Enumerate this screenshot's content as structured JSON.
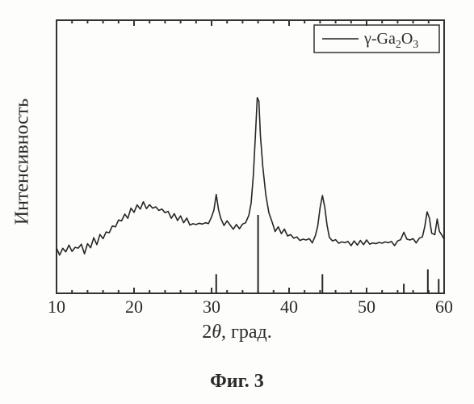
{
  "figure_caption": "Фиг. 3",
  "axes": {
    "xlabel_prefix": "2",
    "xlabel_theta": "θ",
    "xlabel_suffix": ", град.",
    "ylabel": "Интенсивность",
    "xlim": [
      10,
      60
    ],
    "ylim": [
      0,
      100
    ],
    "ymax_display": 100,
    "xticks": [
      10,
      20,
      30,
      40,
      50,
      60
    ],
    "xtick_labels": [
      "10",
      "20",
      "30",
      "40",
      "50",
      "60"
    ],
    "xtick_minor_step": 2,
    "y_axis_visible": false,
    "axis_color": "#333333",
    "tick_length_major": 7,
    "tick_length_minor": 4,
    "tick_fontsize": 22,
    "label_fontsize": 24,
    "background_color": "#ffffff",
    "line_color": "#262626",
    "line_width": 1.6
  },
  "legend": {
    "label_plain": "γ-Ga",
    "sub1": "2",
    "mid": "O",
    "sub2": "3",
    "line_color": "#222222",
    "box_color": "#333333"
  },
  "reference_bars": [
    {
      "x": 30.6,
      "h": 20
    },
    {
      "x": 36.0,
      "h": 82
    },
    {
      "x": 44.3,
      "h": 20
    },
    {
      "x": 54.8,
      "h": 10
    },
    {
      "x": 57.9,
      "h": 25
    },
    {
      "x": 59.3,
      "h": 15
    }
  ],
  "xrd_curve": [
    [
      10.0,
      16
    ],
    [
      10.4,
      14
    ],
    [
      10.8,
      17
    ],
    [
      11.2,
      15
    ],
    [
      11.6,
      18
    ],
    [
      12.0,
      15
    ],
    [
      12.4,
      17
    ],
    [
      12.8,
      16
    ],
    [
      13.2,
      18
    ],
    [
      13.6,
      15
    ],
    [
      14.0,
      18
    ],
    [
      14.4,
      17
    ],
    [
      14.8,
      20
    ],
    [
      15.2,
      18
    ],
    [
      15.6,
      21
    ],
    [
      16.0,
      20
    ],
    [
      16.4,
      23
    ],
    [
      16.8,
      22
    ],
    [
      17.2,
      25
    ],
    [
      17.6,
      24
    ],
    [
      18.0,
      27
    ],
    [
      18.4,
      26
    ],
    [
      18.8,
      29
    ],
    [
      19.2,
      28
    ],
    [
      19.6,
      31
    ],
    [
      20.0,
      30
    ],
    [
      20.4,
      32
    ],
    [
      20.8,
      31
    ],
    [
      21.2,
      33
    ],
    [
      21.6,
      31
    ],
    [
      22.0,
      33
    ],
    [
      22.4,
      31
    ],
    [
      22.8,
      32
    ],
    [
      23.2,
      30
    ],
    [
      23.6,
      31
    ],
    [
      24.0,
      29
    ],
    [
      24.4,
      30
    ],
    [
      24.8,
      28
    ],
    [
      25.2,
      29
    ],
    [
      25.6,
      27
    ],
    [
      26.0,
      28
    ],
    [
      26.4,
      26
    ],
    [
      26.8,
      27
    ],
    [
      27.2,
      25
    ],
    [
      27.6,
      26
    ],
    [
      28.0,
      25
    ],
    [
      28.4,
      26
    ],
    [
      28.8,
      25
    ],
    [
      29.2,
      26
    ],
    [
      29.6,
      25
    ],
    [
      30.0,
      28
    ],
    [
      30.3,
      31
    ],
    [
      30.6,
      36
    ],
    [
      30.9,
      31
    ],
    [
      31.2,
      27
    ],
    [
      31.6,
      25
    ],
    [
      32.0,
      26
    ],
    [
      32.4,
      25
    ],
    [
      32.8,
      24
    ],
    [
      33.2,
      25
    ],
    [
      33.6,
      24
    ],
    [
      34.0,
      25
    ],
    [
      34.4,
      26
    ],
    [
      34.8,
      28
    ],
    [
      35.1,
      33
    ],
    [
      35.4,
      44
    ],
    [
      35.7,
      60
    ],
    [
      35.9,
      72
    ],
    [
      36.1,
      70
    ],
    [
      36.3,
      58
    ],
    [
      36.6,
      46
    ],
    [
      37.0,
      36
    ],
    [
      37.4,
      30
    ],
    [
      37.8,
      26
    ],
    [
      38.2,
      23
    ],
    [
      38.6,
      24
    ],
    [
      39.0,
      22
    ],
    [
      39.4,
      23
    ],
    [
      39.8,
      21
    ],
    [
      40.2,
      22
    ],
    [
      40.6,
      20
    ],
    [
      41.0,
      21
    ],
    [
      41.4,
      19
    ],
    [
      41.8,
      20
    ],
    [
      42.2,
      19
    ],
    [
      42.6,
      20
    ],
    [
      43.0,
      19
    ],
    [
      43.4,
      21
    ],
    [
      43.7,
      25
    ],
    [
      44.0,
      31
    ],
    [
      44.3,
      36
    ],
    [
      44.6,
      31
    ],
    [
      44.9,
      25
    ],
    [
      45.2,
      21
    ],
    [
      45.6,
      19
    ],
    [
      46.0,
      20
    ],
    [
      46.4,
      18
    ],
    [
      46.8,
      19
    ],
    [
      47.2,
      18
    ],
    [
      47.6,
      19
    ],
    [
      48.0,
      18
    ],
    [
      48.4,
      19
    ],
    [
      48.8,
      18
    ],
    [
      49.2,
      19
    ],
    [
      49.6,
      18
    ],
    [
      50.0,
      19
    ],
    [
      50.4,
      18
    ],
    [
      50.8,
      19
    ],
    [
      51.2,
      18
    ],
    [
      51.6,
      19
    ],
    [
      52.0,
      18
    ],
    [
      52.4,
      19
    ],
    [
      52.8,
      18
    ],
    [
      53.2,
      19
    ],
    [
      53.6,
      18
    ],
    [
      54.0,
      19
    ],
    [
      54.4,
      20
    ],
    [
      54.8,
      22
    ],
    [
      55.2,
      20
    ],
    [
      55.6,
      19
    ],
    [
      56.0,
      20
    ],
    [
      56.4,
      19
    ],
    [
      56.8,
      20
    ],
    [
      57.2,
      21
    ],
    [
      57.5,
      24
    ],
    [
      57.8,
      30
    ],
    [
      58.1,
      27
    ],
    [
      58.4,
      22
    ],
    [
      58.8,
      22
    ],
    [
      59.1,
      27
    ],
    [
      59.4,
      23
    ],
    [
      59.7,
      21
    ],
    [
      60.0,
      20
    ]
  ]
}
